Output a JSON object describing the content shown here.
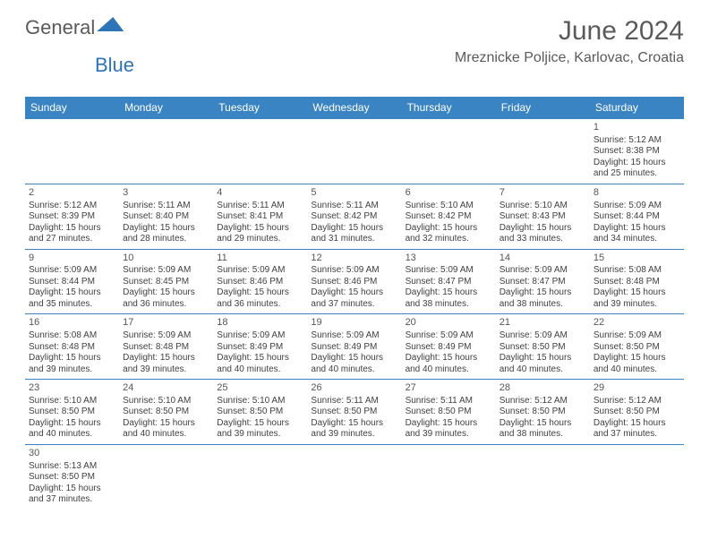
{
  "logo": {
    "text1": "General",
    "text2": "Blue"
  },
  "title": {
    "month": "June 2024",
    "location": "Mreznicke Poljice, Karlovac, Croatia"
  },
  "colors": {
    "headerBg": "#3a84c4",
    "headerText": "#ffffff",
    "border": "#3a84c4",
    "text": "#404040",
    "titleText": "#5a5a5a"
  },
  "dayHeaders": [
    "Sunday",
    "Monday",
    "Tuesday",
    "Wednesday",
    "Thursday",
    "Friday",
    "Saturday"
  ],
  "weeks": [
    [
      null,
      null,
      null,
      null,
      null,
      null,
      {
        "n": "1",
        "sr": "Sunrise: 5:12 AM",
        "ss": "Sunset: 8:38 PM",
        "d1": "Daylight: 15 hours",
        "d2": "and 25 minutes."
      }
    ],
    [
      {
        "n": "2",
        "sr": "Sunrise: 5:12 AM",
        "ss": "Sunset: 8:39 PM",
        "d1": "Daylight: 15 hours",
        "d2": "and 27 minutes."
      },
      {
        "n": "3",
        "sr": "Sunrise: 5:11 AM",
        "ss": "Sunset: 8:40 PM",
        "d1": "Daylight: 15 hours",
        "d2": "and 28 minutes."
      },
      {
        "n": "4",
        "sr": "Sunrise: 5:11 AM",
        "ss": "Sunset: 8:41 PM",
        "d1": "Daylight: 15 hours",
        "d2": "and 29 minutes."
      },
      {
        "n": "5",
        "sr": "Sunrise: 5:11 AM",
        "ss": "Sunset: 8:42 PM",
        "d1": "Daylight: 15 hours",
        "d2": "and 31 minutes."
      },
      {
        "n": "6",
        "sr": "Sunrise: 5:10 AM",
        "ss": "Sunset: 8:42 PM",
        "d1": "Daylight: 15 hours",
        "d2": "and 32 minutes."
      },
      {
        "n": "7",
        "sr": "Sunrise: 5:10 AM",
        "ss": "Sunset: 8:43 PM",
        "d1": "Daylight: 15 hours",
        "d2": "and 33 minutes."
      },
      {
        "n": "8",
        "sr": "Sunrise: 5:09 AM",
        "ss": "Sunset: 8:44 PM",
        "d1": "Daylight: 15 hours",
        "d2": "and 34 minutes."
      }
    ],
    [
      {
        "n": "9",
        "sr": "Sunrise: 5:09 AM",
        "ss": "Sunset: 8:44 PM",
        "d1": "Daylight: 15 hours",
        "d2": "and 35 minutes."
      },
      {
        "n": "10",
        "sr": "Sunrise: 5:09 AM",
        "ss": "Sunset: 8:45 PM",
        "d1": "Daylight: 15 hours",
        "d2": "and 36 minutes."
      },
      {
        "n": "11",
        "sr": "Sunrise: 5:09 AM",
        "ss": "Sunset: 8:46 PM",
        "d1": "Daylight: 15 hours",
        "d2": "and 36 minutes."
      },
      {
        "n": "12",
        "sr": "Sunrise: 5:09 AM",
        "ss": "Sunset: 8:46 PM",
        "d1": "Daylight: 15 hours",
        "d2": "and 37 minutes."
      },
      {
        "n": "13",
        "sr": "Sunrise: 5:09 AM",
        "ss": "Sunset: 8:47 PM",
        "d1": "Daylight: 15 hours",
        "d2": "and 38 minutes."
      },
      {
        "n": "14",
        "sr": "Sunrise: 5:09 AM",
        "ss": "Sunset: 8:47 PM",
        "d1": "Daylight: 15 hours",
        "d2": "and 38 minutes."
      },
      {
        "n": "15",
        "sr": "Sunrise: 5:08 AM",
        "ss": "Sunset: 8:48 PM",
        "d1": "Daylight: 15 hours",
        "d2": "and 39 minutes."
      }
    ],
    [
      {
        "n": "16",
        "sr": "Sunrise: 5:08 AM",
        "ss": "Sunset: 8:48 PM",
        "d1": "Daylight: 15 hours",
        "d2": "and 39 minutes."
      },
      {
        "n": "17",
        "sr": "Sunrise: 5:09 AM",
        "ss": "Sunset: 8:48 PM",
        "d1": "Daylight: 15 hours",
        "d2": "and 39 minutes."
      },
      {
        "n": "18",
        "sr": "Sunrise: 5:09 AM",
        "ss": "Sunset: 8:49 PM",
        "d1": "Daylight: 15 hours",
        "d2": "and 40 minutes."
      },
      {
        "n": "19",
        "sr": "Sunrise: 5:09 AM",
        "ss": "Sunset: 8:49 PM",
        "d1": "Daylight: 15 hours",
        "d2": "and 40 minutes."
      },
      {
        "n": "20",
        "sr": "Sunrise: 5:09 AM",
        "ss": "Sunset: 8:49 PM",
        "d1": "Daylight: 15 hours",
        "d2": "and 40 minutes."
      },
      {
        "n": "21",
        "sr": "Sunrise: 5:09 AM",
        "ss": "Sunset: 8:50 PM",
        "d1": "Daylight: 15 hours",
        "d2": "and 40 minutes."
      },
      {
        "n": "22",
        "sr": "Sunrise: 5:09 AM",
        "ss": "Sunset: 8:50 PM",
        "d1": "Daylight: 15 hours",
        "d2": "and 40 minutes."
      }
    ],
    [
      {
        "n": "23",
        "sr": "Sunrise: 5:10 AM",
        "ss": "Sunset: 8:50 PM",
        "d1": "Daylight: 15 hours",
        "d2": "and 40 minutes."
      },
      {
        "n": "24",
        "sr": "Sunrise: 5:10 AM",
        "ss": "Sunset: 8:50 PM",
        "d1": "Daylight: 15 hours",
        "d2": "and 40 minutes."
      },
      {
        "n": "25",
        "sr": "Sunrise: 5:10 AM",
        "ss": "Sunset: 8:50 PM",
        "d1": "Daylight: 15 hours",
        "d2": "and 39 minutes."
      },
      {
        "n": "26",
        "sr": "Sunrise: 5:11 AM",
        "ss": "Sunset: 8:50 PM",
        "d1": "Daylight: 15 hours",
        "d2": "and 39 minutes."
      },
      {
        "n": "27",
        "sr": "Sunrise: 5:11 AM",
        "ss": "Sunset: 8:50 PM",
        "d1": "Daylight: 15 hours",
        "d2": "and 39 minutes."
      },
      {
        "n": "28",
        "sr": "Sunrise: 5:12 AM",
        "ss": "Sunset: 8:50 PM",
        "d1": "Daylight: 15 hours",
        "d2": "and 38 minutes."
      },
      {
        "n": "29",
        "sr": "Sunrise: 5:12 AM",
        "ss": "Sunset: 8:50 PM",
        "d1": "Daylight: 15 hours",
        "d2": "and 37 minutes."
      }
    ],
    [
      {
        "n": "30",
        "sr": "Sunrise: 5:13 AM",
        "ss": "Sunset: 8:50 PM",
        "d1": "Daylight: 15 hours",
        "d2": "and 37 minutes."
      },
      null,
      null,
      null,
      null,
      null,
      null
    ]
  ]
}
